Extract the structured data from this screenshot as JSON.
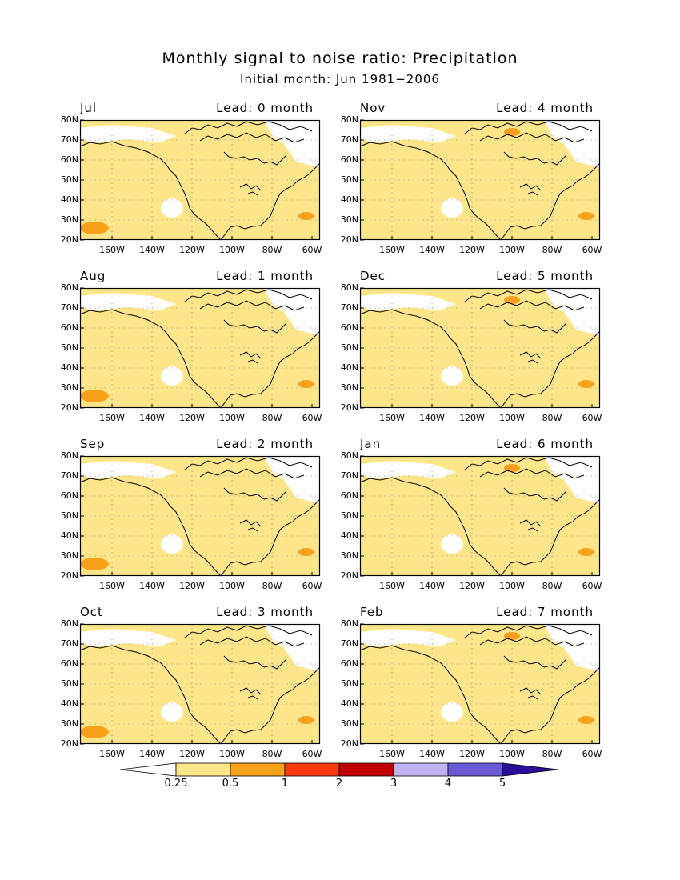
{
  "title": "Monthly signal to noise ratio: Precipitation",
  "subtitle": "Initial month: Jun 1981−2006",
  "lat_labels": [
    "80N",
    "70N",
    "60N",
    "50N",
    "40N",
    "30N",
    "20N"
  ],
  "lon_labels": [
    "160W",
    "140W",
    "120W",
    "100W",
    "80W",
    "60W"
  ],
  "panels": [
    {
      "month": "Jul",
      "lead": "Lead: 0 month"
    },
    {
      "month": "Nov",
      "lead": "Lead: 4 month"
    },
    {
      "month": "Aug",
      "lead": "Lead: 1 month"
    },
    {
      "month": "Dec",
      "lead": "Lead: 5 month"
    },
    {
      "month": "Sep",
      "lead": "Lead: 2 month"
    },
    {
      "month": "Jan",
      "lead": "Lead: 6 month"
    },
    {
      "month": "Oct",
      "lead": "Lead: 3 month"
    },
    {
      "month": "Feb",
      "lead": "Lead: 7 month"
    }
  ],
  "colorbar": {
    "labels": [
      "0.25",
      "0.5",
      "1",
      "2",
      "3",
      "4",
      "5"
    ],
    "colors": [
      "#ffffff",
      "#fde68a",
      "#f7a11a",
      "#fb3c10",
      "#c00000",
      "#c0b4f0",
      "#6a5ad6",
      "#2a0f9a"
    ]
  },
  "map_colors": {
    "land_fill": "#fde68a",
    "white": "#ffffff",
    "orange": "#f7a11a",
    "coast": "#000000",
    "grid": "#999999"
  }
}
